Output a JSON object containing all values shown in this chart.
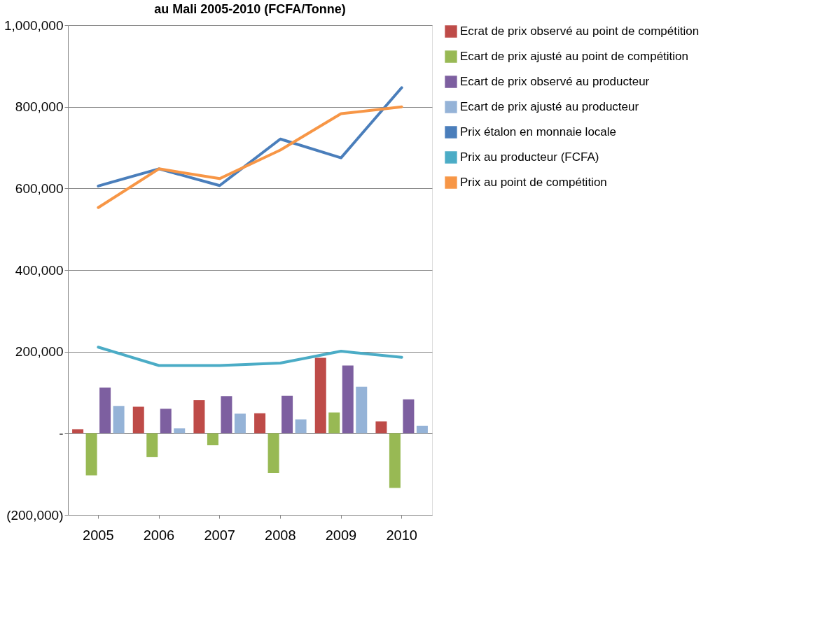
{
  "chart_data": {
    "type": "bar",
    "title": "au Mali 2005-2010 (FCFA/Tonne)",
    "categories": [
      "2005",
      "2006",
      "2007",
      "2008",
      "2009",
      "2010"
    ],
    "series": [
      {
        "name": "Ecrat de prix observé au point de compétition",
        "color": "#be4b48",
        "values": [
          10000,
          65000,
          81000,
          49000,
          185000,
          29000
        ]
      },
      {
        "name": "Ecart de prix ajusté au point de compétition",
        "color": "#98b954",
        "values": [
          -103000,
          -58000,
          -29000,
          -97000,
          51000,
          -134000
        ]
      },
      {
        "name": "Ecart de prix observé au producteur",
        "color": "#7d5fa0",
        "values": [
          112000,
          60000,
          91000,
          92000,
          166000,
          83000
        ]
      },
      {
        "name": "Ecart de prix ajusté au producteur",
        "color": "#95b3d7",
        "values": [
          67000,
          12000,
          48000,
          34000,
          114000,
          18000
        ]
      },
      {
        "name": "Prix étalon en monnaie locale",
        "color": "#4a7ebb",
        "type": "line",
        "values": [
          606000,
          648000,
          607000,
          721000,
          675000,
          847000
        ]
      },
      {
        "name": "Prix au producteur (FCFA)",
        "color": "#4bacc6",
        "type": "line",
        "values": [
          211000,
          166000,
          166000,
          172000,
          201000,
          186000
        ]
      },
      {
        "name": "Prix au point de compétition",
        "color": "#f79646",
        "type": "line",
        "values": [
          553000,
          648000,
          624000,
          694000,
          783000,
          800000
        ]
      }
    ],
    "ylim": [
      -200000,
      1000000
    ],
    "yticks": [
      {
        "value": -200000,
        "label": "(200,000)"
      },
      {
        "value": 0,
        "label": "-"
      },
      {
        "value": 200000,
        "label": "200,000"
      },
      {
        "value": 400000,
        "label": "400,000"
      },
      {
        "value": 600000,
        "label": "600,000"
      },
      {
        "value": 800000,
        "label": "800,000"
      },
      {
        "value": 1000000,
        "label": "1,000,000"
      }
    ],
    "grid": "y",
    "legend": "right"
  }
}
